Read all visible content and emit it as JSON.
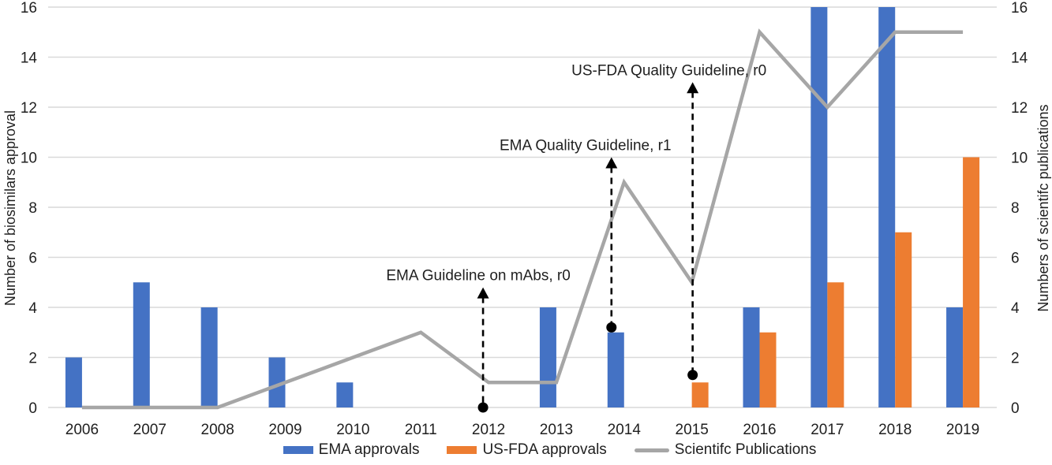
{
  "figure": {
    "background": "#ffffff"
  },
  "chart_data": {
    "type": "combo-bar-line",
    "categories": [
      "2006",
      "2007",
      "2008",
      "2009",
      "2010",
      "2011",
      "2012",
      "2013",
      "2014",
      "2015",
      "2016",
      "2017",
      "2018",
      "2019"
    ],
    "series": [
      {
        "name": "EMA approvals",
        "type": "bar",
        "axis": "left",
        "color": "#4472C4",
        "values": [
          2,
          5,
          4,
          2,
          1,
          0,
          0,
          4,
          3,
          0,
          4,
          16,
          16,
          4
        ]
      },
      {
        "name": "US-FDA approvals",
        "type": "bar",
        "axis": "left",
        "color": "#ED7D31",
        "values": [
          0,
          0,
          0,
          0,
          0,
          0,
          0,
          0,
          0,
          1,
          3,
          5,
          7,
          10
        ]
      },
      {
        "name": "Scientifc Publications",
        "type": "line",
        "axis": "right",
        "color": "#A6A6A6",
        "values": [
          0,
          0,
          0,
          1,
          2,
          3,
          1,
          1,
          9,
          5,
          15,
          12,
          15,
          15
        ]
      }
    ],
    "ylabel_left": "Number of biosimilars approval",
    "ylabel_right": "Numbers of scientifc publications",
    "ylim": [
      0,
      16
    ],
    "ytick_step": 2,
    "grid": true,
    "legend_position": "bottom",
    "annotations": [
      {
        "label": "EMA Guideline on mAbs, r0",
        "category": "2012",
        "dot_value": 0,
        "arrow_tip_value": 4.8,
        "dx": -7,
        "text_dx": -6
      },
      {
        "label": "EMA Quality Guideline, r1",
        "category": "2014",
        "dot_value": 3.2,
        "arrow_tip_value": 10,
        "dx": -16,
        "text_dx": -33
      },
      {
        "label": "US-FDA Quality Guideline, r0",
        "category": "2015",
        "dot_value": 1.3,
        "arrow_tip_value": 13,
        "dx": 1,
        "text_dx": -30
      }
    ],
    "annotation_color": "#000000",
    "gridline_color": "#D9D9D9",
    "tick_label_color": "#1f1f1f"
  }
}
